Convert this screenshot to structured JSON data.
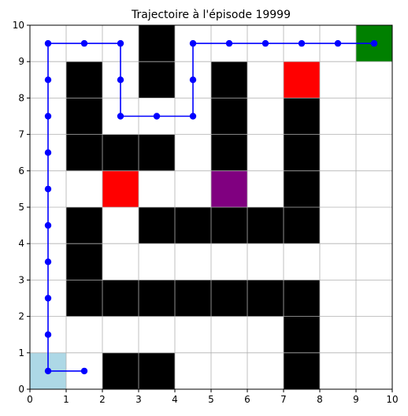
{
  "chart_data": {
    "type": "grid-trajectory",
    "title": "Trajectoire à l'épisode 19999",
    "xlim": [
      0,
      10
    ],
    "ylim": [
      0,
      10
    ],
    "xticks": [
      "0",
      "1",
      "2",
      "3",
      "4",
      "5",
      "6",
      "7",
      "8",
      "9",
      "10"
    ],
    "yticks": [
      "0",
      "1",
      "2",
      "3",
      "4",
      "5",
      "6",
      "7",
      "8",
      "9",
      "10"
    ],
    "grid": true,
    "colors": {
      "wall": "#000000",
      "start": "#add8e6",
      "goal": "#008000",
      "trap": "#ff0000",
      "special": "#800080",
      "path": "#0000ff",
      "gridline": "#b0b0b0"
    },
    "cells": {
      "wall": [
        [
          3,
          9
        ],
        [
          3,
          8
        ],
        [
          1,
          8
        ],
        [
          1,
          7
        ],
        [
          1,
          6
        ],
        [
          2,
          6
        ],
        [
          3,
          6
        ],
        [
          5,
          8
        ],
        [
          5,
          7
        ],
        [
          5,
          6
        ],
        [
          7,
          7
        ],
        [
          7,
          6
        ],
        [
          7,
          5
        ],
        [
          1,
          4
        ],
        [
          1,
          3
        ],
        [
          3,
          4
        ],
        [
          4,
          4
        ],
        [
          5,
          4
        ],
        [
          6,
          4
        ],
        [
          7,
          4
        ],
        [
          1,
          2
        ],
        [
          2,
          2
        ],
        [
          3,
          2
        ],
        [
          4,
          2
        ],
        [
          5,
          2
        ],
        [
          6,
          2
        ],
        [
          7,
          2
        ],
        [
          7,
          1
        ],
        [
          7,
          0
        ],
        [
          2,
          0
        ],
        [
          3,
          0
        ]
      ],
      "start": [
        [
          0,
          0
        ]
      ],
      "goal": [
        [
          9,
          9
        ]
      ],
      "trap": [
        [
          7,
          8
        ],
        [
          2,
          5
        ]
      ],
      "special": [
        [
          5,
          5
        ]
      ]
    },
    "trajectory": {
      "x": [
        1.5,
        0.5,
        0.5,
        0.5,
        0.5,
        0.5,
        0.5,
        0.5,
        0.5,
        0.5,
        0.5,
        1.5,
        2.5,
        2.5,
        2.5,
        3.5,
        4.5,
        4.5,
        4.5,
        5.5,
        6.5,
        7.5,
        8.5,
        9.5
      ],
      "y": [
        0.5,
        0.5,
        1.5,
        2.5,
        3.5,
        4.5,
        5.5,
        6.5,
        7.5,
        8.5,
        9.5,
        9.5,
        9.5,
        8.5,
        7.5,
        7.5,
        7.5,
        8.5,
        9.5,
        9.5,
        9.5,
        9.5,
        9.5,
        9.5
      ]
    }
  }
}
